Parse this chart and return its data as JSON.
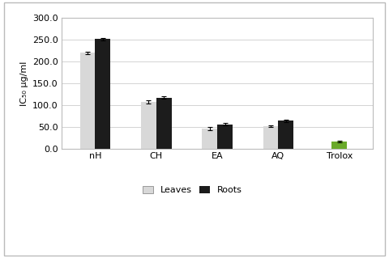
{
  "categories": [
    "nH",
    "CH",
    "EA",
    "AQ",
    "Trolox"
  ],
  "leaves_values": [
    220,
    108,
    47,
    52,
    0
  ],
  "roots_values": [
    252,
    118,
    57,
    65,
    17
  ],
  "leaves_errors": [
    3,
    3,
    3,
    2,
    0
  ],
  "roots_errors": [
    3,
    2,
    3,
    3,
    2
  ],
  "trolox_value": 17,
  "trolox_error": 2,
  "bar_width": 0.25,
  "leaves_color": "#d8d8d8",
  "roots_color": "#1c1c1c",
  "trolox_color": "#6aaa2a",
  "ylabel": "IC₅₀ µg/ml",
  "ylim": [
    0,
    300
  ],
  "yticks": [
    0.0,
    50.0,
    100.0,
    150.0,
    200.0,
    250.0,
    300.0
  ],
  "legend_leaves": "Leaves",
  "legend_roots": "Roots",
  "fig_bg_color": "#ffffff",
  "plot_bg_color": "#ffffff",
  "outer_box_color": "#bbbbbb",
  "grid_color": "#cccccc",
  "font_size": 8,
  "error_capsize": 2
}
